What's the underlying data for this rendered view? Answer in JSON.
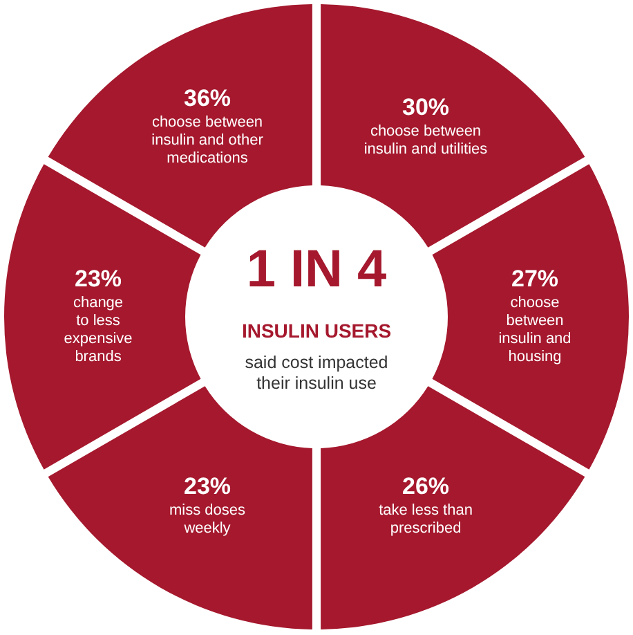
{
  "chart_data": {
    "type": "other",
    "title": "1 IN 4",
    "subtitle": "INSULIN USERS",
    "annotations": [
      "said cost impacted\ntheir insulin use"
    ],
    "categories": [
      "choose between\ninsulin and utilities",
      "choose\nbetween\ninsulin and\nhousing",
      "take less than\nprescribed",
      "miss doses\nweekly",
      "change\nto less\nexpensive\nbrands",
      "choose between\ninsulin and other\nmedications"
    ],
    "values": [
      30,
      27,
      26,
      23,
      23,
      36
    ],
    "value_labels": [
      "30%",
      "27%",
      "26%",
      "23%",
      "23%",
      "36%"
    ],
    "color": "#a5182d"
  }
}
